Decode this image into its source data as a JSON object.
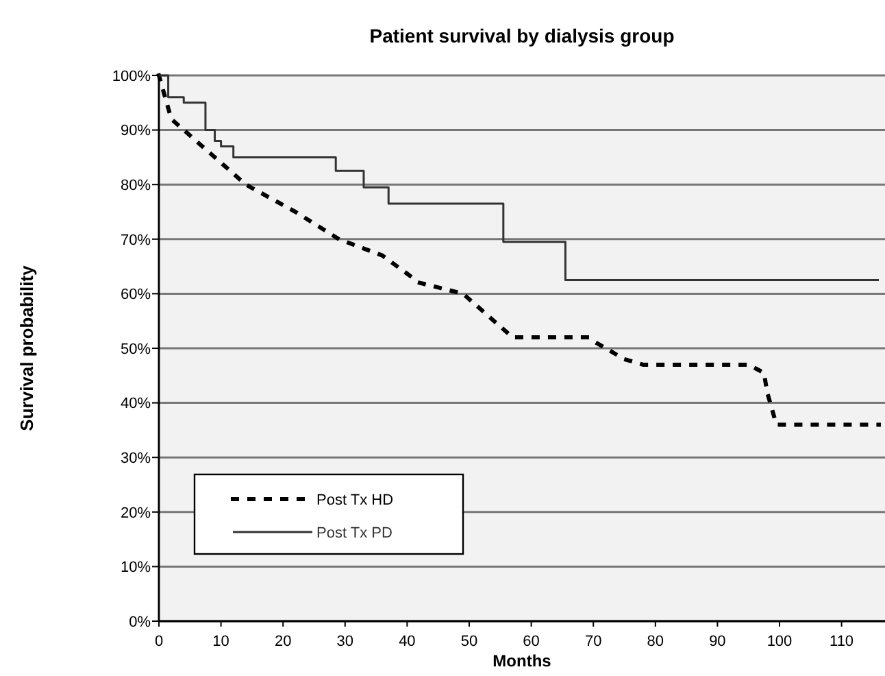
{
  "chart_data": {
    "type": "line",
    "title": "Patient survival by dialysis group",
    "xlabel": "Months",
    "ylabel": "Survival probability",
    "xlim": [
      0,
      117
    ],
    "xticks": [
      0,
      10,
      20,
      30,
      40,
      50,
      60,
      70,
      80,
      90,
      100,
      110
    ],
    "ylim": [
      0,
      100
    ],
    "yticks": [
      {
        "value": 0,
        "label": "0%"
      },
      {
        "value": 10,
        "label": "10%"
      },
      {
        "value": 20,
        "label": "20%"
      },
      {
        "value": 30,
        "label": "30%"
      },
      {
        "value": 40,
        "label": "40%"
      },
      {
        "value": 50,
        "label": "50%"
      },
      {
        "value": 60,
        "label": "60%"
      },
      {
        "value": 70,
        "label": "70%"
      },
      {
        "value": 80,
        "label": "80%"
      },
      {
        "value": 90,
        "label": "90%"
      },
      {
        "value": 100,
        "label": "100%"
      }
    ],
    "grid": "y",
    "legend": "bottom left",
    "marker": "none",
    "series": [
      {
        "name": "Post Tx HD",
        "color": "#000000",
        "line_style": "dotted",
        "x": [
          0,
          2,
          8,
          14,
          22,
          29,
          36,
          42,
          49,
          57,
          69,
          75,
          78,
          95,
          97.5,
          98,
          99.5,
          116
        ],
        "values": [
          100,
          92,
          86,
          80,
          75,
          70,
          67,
          62,
          60,
          52,
          52,
          48,
          47,
          47,
          45.5,
          42,
          36,
          36
        ]
      },
      {
        "name": "Post Tx PD",
        "color": "#333333",
        "type": "step",
        "line_style": "solid",
        "x": [
          0,
          1.5,
          4,
          7.5,
          9,
          10,
          12,
          28.5,
          33,
          37,
          55.5,
          65.5,
          116
        ],
        "values": [
          100,
          96,
          95,
          90,
          88,
          87,
          85,
          82.5,
          79.5,
          76.5,
          69.5,
          62.5,
          62.5
        ]
      }
    ]
  }
}
